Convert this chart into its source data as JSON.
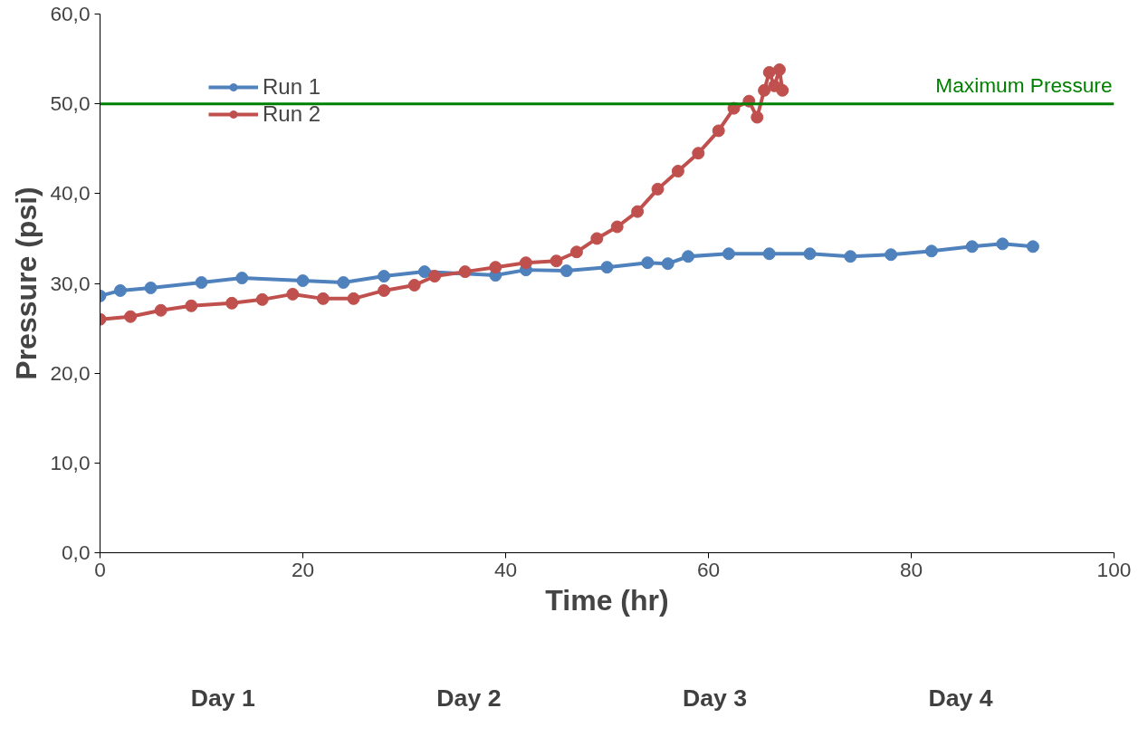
{
  "chart_data": {
    "type": "line",
    "xlabel": "Time (hr)",
    "ylabel": "Pressure (psi)",
    "xlim": [
      0,
      100
    ],
    "xticks": [
      0,
      20,
      40,
      60,
      80,
      100
    ],
    "ylim": [
      0,
      60
    ],
    "yticks": [
      {
        "value": 0,
        "label": "0,0"
      },
      {
        "value": 10,
        "label": "10,0"
      },
      {
        "value": 20,
        "label": "20,0"
      },
      {
        "value": 30,
        "label": "30,0"
      },
      {
        "value": 40,
        "label": "40,0"
      },
      {
        "value": 50,
        "label": "50,0"
      },
      {
        "value": 60,
        "label": "60,0"
      }
    ],
    "series": [
      {
        "name": "Run 1",
        "color": "#4f81bd",
        "x": [
          0,
          2,
          5,
          10,
          14,
          20,
          24,
          28,
          32,
          39,
          42,
          46,
          50,
          54,
          56,
          58,
          62,
          66,
          70,
          74,
          78,
          82,
          86,
          89,
          92
        ],
        "values": [
          28.6,
          29.2,
          29.5,
          30.1,
          30.6,
          30.3,
          30.1,
          30.8,
          31.3,
          30.9,
          31.5,
          31.4,
          31.8,
          32.3,
          32.2,
          33.0,
          33.3,
          33.3,
          33.3,
          33.0,
          33.2,
          33.6,
          34.1,
          34.4,
          34.1
        ]
      },
      {
        "name": "Run 2",
        "color": "#c0504d",
        "x": [
          0,
          3,
          6,
          9,
          13,
          16,
          19,
          22,
          25,
          28,
          31,
          33,
          36,
          39,
          42,
          45,
          47,
          49,
          51,
          53,
          55,
          57,
          59,
          61,
          62.5,
          64,
          64.8,
          65.5,
          66,
          66.5,
          67,
          67.3
        ],
        "values": [
          26.0,
          26.3,
          27.0,
          27.5,
          27.8,
          28.2,
          28.8,
          28.3,
          28.3,
          29.2,
          29.8,
          30.8,
          31.3,
          31.8,
          32.3,
          32.5,
          33.5,
          35.0,
          36.3,
          38.0,
          40.5,
          42.5,
          44.5,
          47.0,
          49.5,
          50.3,
          48.5,
          51.5,
          53.5,
          52.0,
          53.8,
          51.5
        ]
      }
    ],
    "ref_lines": [
      {
        "axis": "y",
        "value": 50,
        "label": "Maximum Pressure",
        "color": "#008000"
      }
    ],
    "annotations": [
      "Day 1",
      "Day 2",
      "Day 3",
      "Day 4"
    ],
    "marker": "circle",
    "line_style": "solid",
    "grid": false,
    "legend": "top left"
  }
}
